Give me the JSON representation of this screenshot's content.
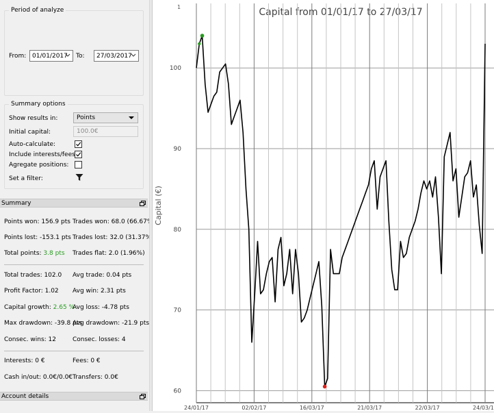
{
  "period": {
    "title": "Period of analyze",
    "from_label": "From:",
    "from_value": "01/01/2017",
    "to_label": "To:",
    "to_value": "27/03/2017"
  },
  "summary_options": {
    "title": "Summary options",
    "show_results_label": "Show results in:",
    "show_results_value": "Points",
    "initial_capital_label": "Initial capital:",
    "initial_capital_value": "100.0€",
    "auto_calculate_label": "Auto-calculate:",
    "auto_calculate_checked": true,
    "include_fees_label": "Include interests/fees:",
    "include_fees_checked": true,
    "aggregate_label": "Agregate positions:",
    "aggregate_checked": false,
    "filter_label": "Set a filter:"
  },
  "summary": {
    "title": "Summary",
    "points_won": "Points won: 156.9 pts",
    "trades_won": "Trades won: 68.0 (66.67%)",
    "points_lost": "Points lost: -153.1 pts",
    "trades_lost": "Trades lost: 32.0 (31.37%)",
    "total_points_label": "Total points: ",
    "total_points_value": "3.8 pts",
    "trades_flat": "Trades flat: 2.0 (1.96%)",
    "total_trades": "Total trades: 102.0",
    "avg_trade": "Avg trade: 0.04 pts",
    "profit_factor": "Profit Factor: 1.02",
    "avg_win": "Avg win: 2.31 pts",
    "capital_growth_label": "Capital growth: ",
    "capital_growth_value": "2.65 %",
    "avg_loss": "Avg loss: -4.78 pts",
    "max_drawdown": "Max drawdown: -39.8 pts",
    "avg_drawdown": "Avg drawdown: -21.9 pts",
    "consec_wins": "Consec. wins: 12",
    "consec_losses": "Consec. losses: 4",
    "interests": "Interests: 0 €",
    "fees": "Fees: 0 €",
    "cash_inout": "Cash in/out: 0.0€/0.0€",
    "transfers": "Transfers: 0.0€"
  },
  "account_details": {
    "title": "Account details"
  },
  "colors": {
    "positive": "#2a9b22",
    "max_point": "#2a9b22",
    "min_point": "#e0201b",
    "line": "#000000"
  },
  "chart_data": {
    "type": "line",
    "title": "Capital from 01/01/17 to 27/03/17",
    "ylabel": "Capital (€)",
    "xlabel": "",
    "corner_label": "1",
    "ylim": [
      58.5,
      108
    ],
    "yticks": [
      60,
      70,
      80,
      90,
      100
    ],
    "xticks": [
      "24/01/17",
      "02/02/17",
      "16/03/17",
      "21/03/17",
      "22/03/17",
      "24/03/17"
    ],
    "grid": true,
    "series": [
      {
        "values": [
          100.0,
          103.0,
          104.0,
          98.0,
          94.5,
          95.5,
          96.5,
          97.0,
          99.5,
          100.0,
          100.5,
          98.0,
          93.0,
          94.0,
          95.0,
          96.0,
          92.0,
          85.0,
          80.0,
          66.0,
          72.0,
          78.5,
          72.0,
          72.5,
          74.5,
          76.0,
          76.5,
          71.0,
          77.5,
          79.0,
          73.0,
          74.5,
          77.5,
          72.0,
          77.5,
          74.5,
          68.5,
          69.0,
          70.0,
          71.5,
          73.0,
          74.5,
          76.0,
          70.5,
          60.5,
          61.5,
          77.5,
          74.5,
          74.5,
          74.5,
          76.5,
          77.5,
          78.5,
          79.5,
          80.5,
          81.5,
          82.5,
          83.5,
          84.5,
          85.5,
          87.5,
          88.5,
          82.5,
          86.5,
          87.5,
          88.5,
          81.0,
          75.0,
          72.5,
          72.5,
          78.5,
          76.5,
          77.0,
          79.0,
          80.0,
          81.0,
          82.5,
          84.5,
          86.0,
          85.0,
          86.0,
          84.0,
          86.5,
          81.5,
          74.5,
          89.0,
          90.5,
          92.0,
          86.0,
          87.5,
          81.5,
          84.0,
          86.5,
          87.0,
          88.5,
          84.0,
          85.5,
          80.5,
          77.0,
          103.0
        ],
        "max_index": 2,
        "min_index": 44
      }
    ]
  }
}
